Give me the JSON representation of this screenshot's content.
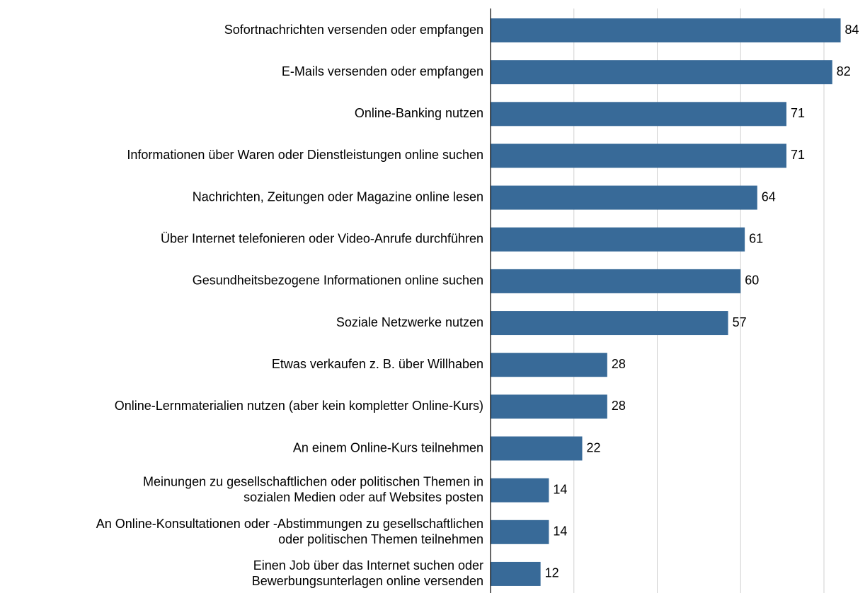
{
  "chart_data": {
    "type": "bar",
    "orientation": "horizontal",
    "categories": [
      "Sofortnachrichten versenden oder empfangen",
      "E-Mails versenden oder empfangen",
      "Online-Banking nutzen",
      "Informationen über Waren oder Dienstleistungen online suchen",
      "Nachrichten, Zeitungen oder Magazine online lesen",
      "Über Internet telefonieren oder Video-Anrufe durchführen",
      "Gesundheitsbezogene Informationen online suchen",
      "Soziale Netzwerke nutzen",
      "Etwas verkaufen z. B. über Willhaben",
      "Online-Lernmaterialien nutzen (aber kein kompletter Online-Kurs)",
      "An einem Online-Kurs teilnehmen",
      "Meinungen zu gesellschaftlichen oder politischen Themen in\nsozialen Medien oder auf Websites posten",
      "An Online-Konsultationen oder -Abstimmungen zu gesellschaftlichen\noder politischen Themen teilnehmen",
      "Einen Job über das Internet suchen oder\nBewerbungsunterlagen online versenden"
    ],
    "values": [
      84,
      82,
      71,
      71,
      64,
      61,
      60,
      57,
      28,
      28,
      22,
      14,
      14,
      12
    ],
    "color": "#386a98",
    "xlim": [
      0,
      89
    ],
    "xticks": [
      0,
      20,
      40,
      60,
      80
    ],
    "grid": true
  }
}
